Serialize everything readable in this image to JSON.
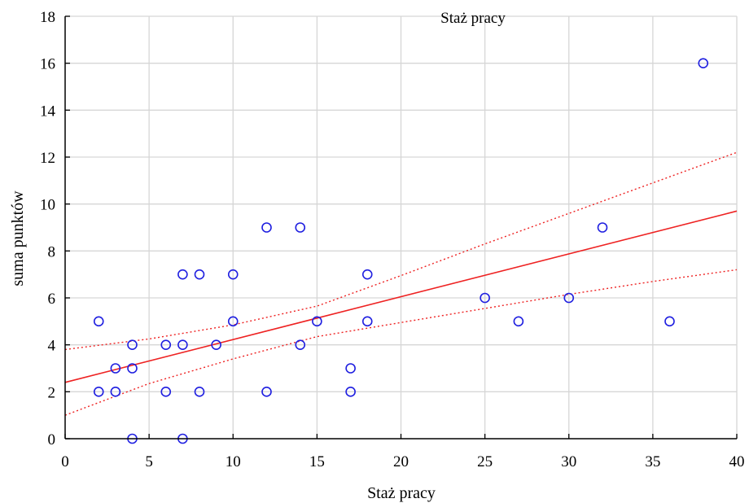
{
  "chart_data": {
    "type": "scatter",
    "title": "Staż pracy",
    "xlabel": "Staż pracy",
    "ylabel": "suma punktów",
    "xlim": [
      0,
      40
    ],
    "ylim": [
      0,
      18
    ],
    "xticks": [
      "0",
      "5",
      "10",
      "15",
      "20",
      "25",
      "30",
      "35",
      "40"
    ],
    "yticks": [
      "0",
      "2",
      "4",
      "6",
      "8",
      "10",
      "12",
      "14",
      "16",
      "18"
    ],
    "grid": true,
    "points": [
      {
        "x": 2,
        "y": 5
      },
      {
        "x": 2,
        "y": 2
      },
      {
        "x": 3,
        "y": 3
      },
      {
        "x": 3,
        "y": 2
      },
      {
        "x": 4,
        "y": 4
      },
      {
        "x": 4,
        "y": 3
      },
      {
        "x": 4,
        "y": 0
      },
      {
        "x": 6,
        "y": 4
      },
      {
        "x": 6,
        "y": 2
      },
      {
        "x": 7,
        "y": 7
      },
      {
        "x": 7,
        "y": 4
      },
      {
        "x": 7,
        "y": 0
      },
      {
        "x": 8,
        "y": 7
      },
      {
        "x": 8,
        "y": 2
      },
      {
        "x": 9,
        "y": 4
      },
      {
        "x": 10,
        "y": 7
      },
      {
        "x": 10,
        "y": 5
      },
      {
        "x": 12,
        "y": 9
      },
      {
        "x": 12,
        "y": 2
      },
      {
        "x": 14,
        "y": 9
      },
      {
        "x": 14,
        "y": 4
      },
      {
        "x": 15,
        "y": 5
      },
      {
        "x": 17,
        "y": 3
      },
      {
        "x": 17,
        "y": 2
      },
      {
        "x": 18,
        "y": 7
      },
      {
        "x": 18,
        "y": 5
      },
      {
        "x": 25,
        "y": 6
      },
      {
        "x": 27,
        "y": 5
      },
      {
        "x": 30,
        "y": 6
      },
      {
        "x": 32,
        "y": 9
      },
      {
        "x": 36,
        "y": 5
      },
      {
        "x": 38,
        "y": 16
      }
    ],
    "regression_line": {
      "x": [
        0,
        40
      ],
      "y": [
        2.4,
        9.7
      ]
    },
    "confidence_band_upper": {
      "x": [
        0,
        5,
        10,
        15,
        20,
        25,
        30,
        35,
        40
      ],
      "y": [
        3.8,
        4.25,
        4.85,
        5.65,
        6.95,
        8.3,
        9.6,
        10.9,
        12.2
      ]
    },
    "confidence_band_lower": {
      "x": [
        0,
        5,
        10,
        15,
        20,
        25,
        30,
        35,
        40
      ],
      "y": [
        1.0,
        2.35,
        3.4,
        4.35,
        4.95,
        5.55,
        6.15,
        6.7,
        7.2
      ]
    },
    "colors": {
      "points": "#1f1fe0",
      "regression": "#ee2222",
      "band": "#ee2222",
      "grid": "#d6d6d6",
      "axis": "#000000"
    }
  }
}
